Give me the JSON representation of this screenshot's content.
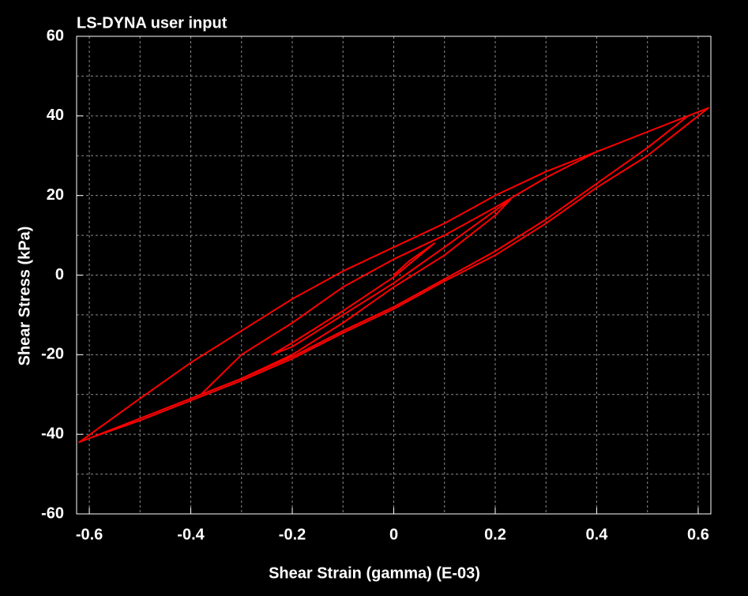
{
  "chart_data": {
    "type": "line",
    "title": "LS-DYNA user input",
    "x_label": "Shear Strain (gamma) (E-03)",
    "y_label": "Shear Stress (kPa)",
    "xlim": [
      -0.625,
      0.625
    ],
    "ylim": [
      -60,
      60
    ],
    "xticks": [
      -0.6,
      -0.4,
      -0.2,
      0,
      0.2,
      0.4,
      0.6
    ],
    "yticks": [
      -60,
      -40,
      -20,
      0,
      20,
      40,
      60
    ],
    "xgrid": [
      -0.6,
      -0.5,
      -0.4,
      -0.3,
      -0.2,
      -0.1,
      0,
      0.1,
      0.2,
      0.3,
      0.4,
      0.5,
      0.6
    ],
    "ygrid": [
      -50,
      -40,
      -30,
      -20,
      -10,
      0,
      10,
      20,
      30,
      40,
      50
    ],
    "grid": true,
    "series": [
      {
        "color": "#ff0000",
        "x": [
          0,
          0.03,
          0.08,
          0,
          -0.1,
          -0.2,
          -0.24,
          -0.2,
          -0.1,
          0,
          0.1,
          0.23,
          0.2,
          0.1,
          0,
          -0.1,
          -0.2,
          -0.3,
          -0.38,
          -0.3,
          -0.2,
          -0.1,
          0,
          0.1,
          0.2,
          0.3,
          0.4,
          0.5,
          0.58,
          0.5,
          0.4,
          0.3,
          0.2,
          0.1,
          0,
          -0.1,
          -0.2,
          -0.3,
          -0.4,
          -0.5,
          -0.62,
          -0.5,
          -0.4,
          -0.3,
          -0.2,
          -0.1,
          0,
          0.1,
          0.2,
          0.3,
          0.4,
          0.5,
          0.62,
          0.5,
          0.4,
          0.3,
          0.2,
          0.1,
          0,
          -0.1,
          -0.2,
          -0.3,
          -0.4,
          -0.5,
          -0.6
        ],
        "values": [
          0,
          3.5,
          8,
          -0.5,
          -9,
          -17,
          -20,
          -18,
          -10,
          -2,
          7,
          19,
          15,
          5,
          -3,
          -12,
          -20,
          -26,
          -30,
          -20,
          -12,
          -3,
          4,
          10,
          17,
          24.5,
          31,
          36,
          40,
          32,
          23,
          14,
          6,
          -1,
          -8,
          -14,
          -20.5,
          -26,
          -31,
          -36,
          -42,
          -31,
          -22,
          -14,
          -6,
          1,
          7,
          13,
          20,
          26,
          31,
          36,
          42,
          30,
          22,
          13,
          5,
          -1.5,
          -8.5,
          -14.5,
          -21,
          -26.5,
          -31.5,
          -36.5,
          -41
        ]
      }
    ]
  }
}
